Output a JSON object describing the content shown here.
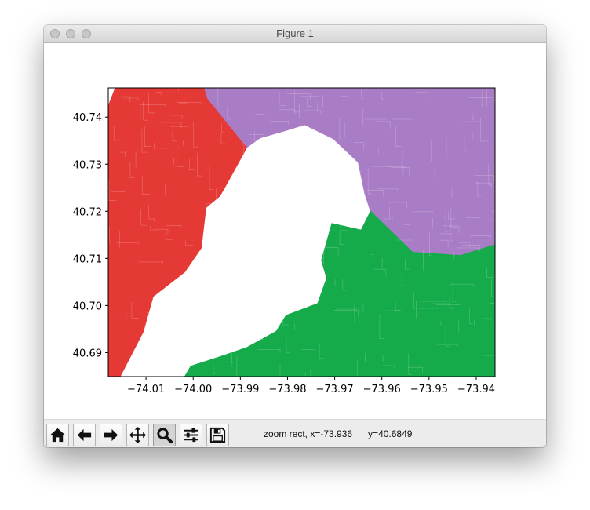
{
  "window": {
    "title": "Figure 1"
  },
  "toolbar": {
    "buttons": [
      {
        "name": "home-button",
        "icon": "home-icon",
        "active": false
      },
      {
        "name": "back-button",
        "icon": "arrow-left-icon",
        "active": false
      },
      {
        "name": "forward-button",
        "icon": "arrow-right-icon",
        "active": false
      },
      {
        "name": "pan-button",
        "icon": "move-icon",
        "active": false
      },
      {
        "name": "zoom-button",
        "icon": "magnifier-icon",
        "active": true
      },
      {
        "name": "configure-subplots-button",
        "icon": "sliders-icon",
        "active": false
      },
      {
        "name": "save-button",
        "icon": "floppy-disk-icon",
        "active": false
      }
    ],
    "status_text": "zoom rect, x=-73.936      y=40.6849"
  },
  "chart_data": {
    "type": "map",
    "xlim": [
      -74.018,
      -73.936
    ],
    "ylim": [
      40.6849,
      40.7462
    ],
    "x_ticks": [
      -74.01,
      -74.0,
      -73.99,
      -73.98,
      -73.97,
      -73.96,
      -73.95,
      -73.94
    ],
    "x_tick_labels": [
      "−74.01",
      "−74.00",
      "−73.99",
      "−73.98",
      "−73.97",
      "−73.96",
      "−73.95",
      "−73.94"
    ],
    "y_ticks": [
      40.69,
      40.7,
      40.71,
      40.72,
      40.73,
      40.74
    ],
    "y_tick_labels": [
      "40.69",
      "40.70",
      "40.71",
      "40.72",
      "40.73",
      "40.74"
    ],
    "regions": [
      {
        "color": "#e53935",
        "polygon": [
          [
            -74.018,
            40.6849
          ],
          [
            -74.0155,
            40.6849
          ],
          [
            -74.0106,
            40.6944
          ],
          [
            -74.0085,
            40.7019
          ],
          [
            -74.0018,
            40.7071
          ],
          [
            -73.9983,
            40.7122
          ],
          [
            -73.9973,
            40.7208
          ],
          [
            -73.9944,
            40.7232
          ],
          [
            -73.9934,
            40.7249
          ],
          [
            -73.9886,
            40.7336
          ],
          [
            -73.9969,
            40.7439
          ],
          [
            -73.9976,
            40.7462
          ],
          [
            -74.0165,
            40.7462
          ],
          [
            -74.018,
            40.7423
          ]
        ]
      },
      {
        "color": "#a97dc5",
        "polygon": [
          [
            -73.9976,
            40.7462
          ],
          [
            -73.936,
            40.7462
          ],
          [
            -73.936,
            40.7129
          ],
          [
            -73.9433,
            40.7106
          ],
          [
            -73.9535,
            40.7113
          ],
          [
            -73.9624,
            40.72
          ],
          [
            -73.9636,
            40.7237
          ],
          [
            -73.965,
            40.7304
          ],
          [
            -73.9703,
            40.7354
          ],
          [
            -73.9764,
            40.7384
          ],
          [
            -73.9802,
            40.7372
          ],
          [
            -73.9858,
            40.7356
          ],
          [
            -73.9886,
            40.7336
          ],
          [
            -73.9969,
            40.7439
          ]
        ]
      },
      {
        "color": "#15aa4a",
        "polygon": [
          [
            -74.0155,
            40.6849
          ],
          [
            -73.936,
            40.6849
          ],
          [
            -73.936,
            40.7129
          ],
          [
            -73.9433,
            40.7106
          ],
          [
            -73.9535,
            40.7113
          ],
          [
            -73.9624,
            40.72
          ],
          [
            -73.9644,
            40.716
          ],
          [
            -73.9706,
            40.7174
          ],
          [
            -73.9728,
            40.7096
          ],
          [
            -73.9717,
            40.7058
          ],
          [
            -73.9736,
            40.7004
          ],
          [
            -73.9803,
            40.6979
          ],
          [
            -73.9824,
            40.6945
          ],
          [
            -73.9886,
            40.6911
          ],
          [
            -73.9944,
            40.6891
          ],
          [
            -74.0005,
            40.6871
          ],
          [
            -74.0018,
            40.6849
          ]
        ]
      }
    ]
  }
}
